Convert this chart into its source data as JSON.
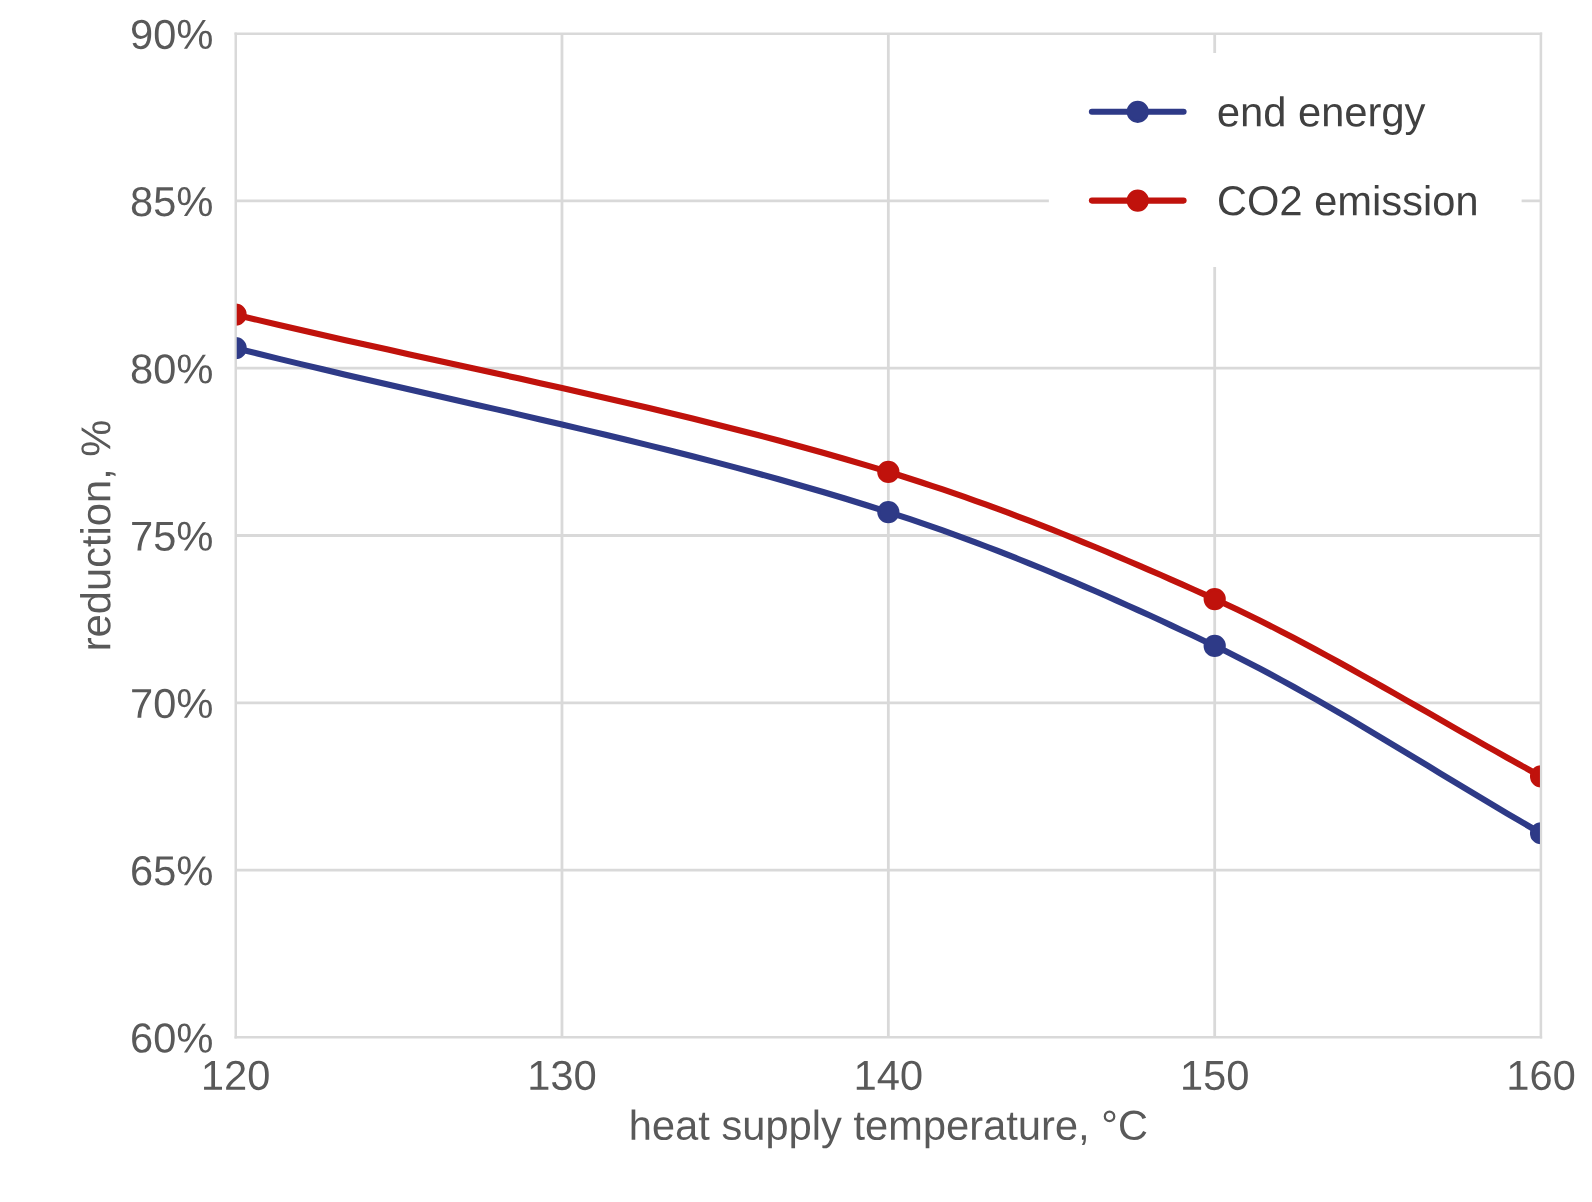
{
  "chart_data": {
    "type": "line",
    "xlabel": "heat supply temperature, °C",
    "ylabel": "reduction, %",
    "x": [
      120,
      140,
      150,
      160
    ],
    "series": [
      {
        "name": "end energy",
        "color": "#2e3a87",
        "values": [
          80.6,
          75.7,
          71.7,
          66.1
        ]
      },
      {
        "name": "CO2 emission",
        "color": "#c0120c",
        "values": [
          81.6,
          76.9,
          73.1,
          67.8
        ]
      }
    ],
    "xlim": [
      120,
      160
    ],
    "xticks": [
      120,
      130,
      140,
      150,
      160
    ],
    "ylim": [
      60,
      90
    ],
    "yticks": [
      {
        "value": 60,
        "label": "60%"
      },
      {
        "value": 65,
        "label": "65%"
      },
      {
        "value": 70,
        "label": "70%"
      },
      {
        "value": 75,
        "label": "75%"
      },
      {
        "value": 80,
        "label": "80%"
      },
      {
        "value": 85,
        "label": "85%"
      },
      {
        "value": 90,
        "label": "90%"
      }
    ],
    "grid": true,
    "legend": "top right",
    "marker": "circle",
    "line_style": "solid"
  }
}
